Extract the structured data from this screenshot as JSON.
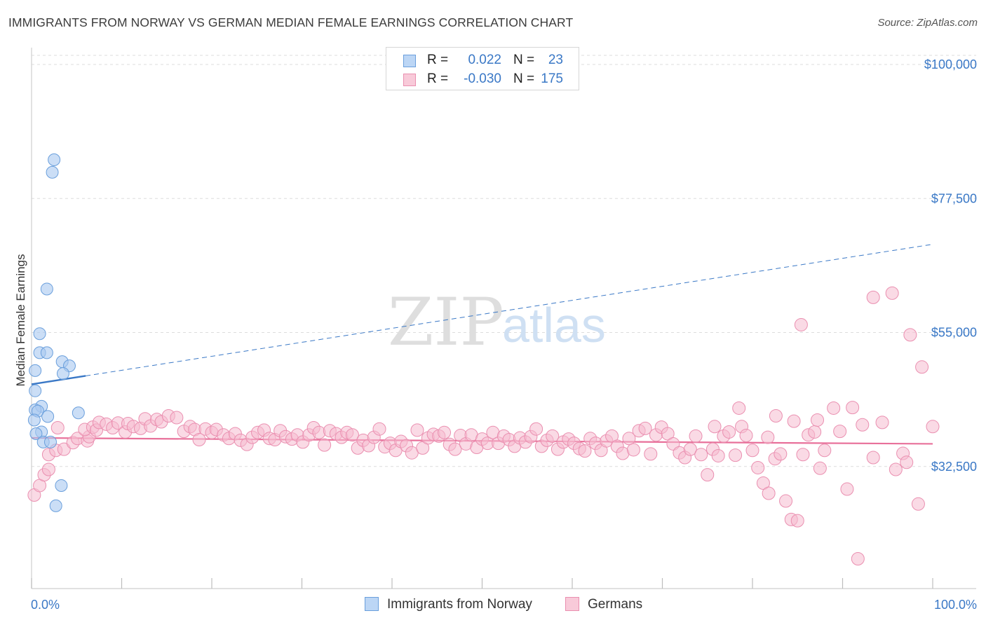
{
  "title": "IMMIGRANTS FROM NORWAY VS GERMAN MEDIAN FEMALE EARNINGS CORRELATION CHART",
  "source": "Source: ZipAtlas.com",
  "watermark": {
    "zip": "ZIP",
    "atlas": "atlas"
  },
  "legend": {
    "rows": [
      {
        "r_label": "R =",
        "r_value": "0.022",
        "n_label": "N =",
        "n_value": "23"
      },
      {
        "r_label": "R =",
        "r_value": "-0.030",
        "n_label": "N =",
        "n_value": "175"
      }
    ]
  },
  "bottom_legend": {
    "items": [
      {
        "label": "Immigrants from Norway"
      },
      {
        "label": "Germans"
      }
    ]
  },
  "colors": {
    "blue_fill": "#a8c8f0",
    "blue_stroke": "#6a9fdc",
    "blue_line": "#3a78c6",
    "pink_fill": "#f6bcd0",
    "pink_stroke": "#ea8fb0",
    "pink_line": "#e8709a",
    "tick_label": "#3a78c6",
    "grid": "#dddddd"
  },
  "chart_data": {
    "type": "scatter",
    "xlabel": "",
    "ylabel": "Median Female Earnings",
    "xlim": [
      0,
      100
    ],
    "ylim": [
      12000,
      102000
    ],
    "x_tick_labels": [
      "0.0%",
      "100.0%"
    ],
    "y_ticks": [
      {
        "value": 32500,
        "label": "$32,500"
      },
      {
        "value": 55000,
        "label": "$55,000"
      },
      {
        "value": 77500,
        "label": "$77,500"
      },
      {
        "value": 100000,
        "label": "$100,000"
      }
    ],
    "grid": true,
    "series": [
      {
        "name": "Immigrants from Norway",
        "color": "blue",
        "points": [
          [
            2.5,
            84000
          ],
          [
            2.3,
            81900
          ],
          [
            1.7,
            62300
          ],
          [
            0.9,
            54800
          ],
          [
            0.9,
            51600
          ],
          [
            1.7,
            51600
          ],
          [
            3.4,
            50100
          ],
          [
            0.4,
            48600
          ],
          [
            4.2,
            49400
          ],
          [
            3.5,
            48100
          ],
          [
            0.4,
            45200
          ],
          [
            1.1,
            42600
          ],
          [
            0.4,
            42000
          ],
          [
            0.7,
            41800
          ],
          [
            1.8,
            40900
          ],
          [
            5.2,
            41500
          ],
          [
            0.3,
            40300
          ],
          [
            1.1,
            38300
          ],
          [
            0.5,
            38000
          ],
          [
            1.3,
            36600
          ],
          [
            2.1,
            36600
          ],
          [
            3.3,
            29300
          ],
          [
            2.7,
            25900
          ]
        ],
        "trend": {
          "x": [
            0,
            100
          ],
          "y": [
            46300,
            69800
          ],
          "solid_until_x": 6
        }
      },
      {
        "name": "Germans",
        "color": "pink",
        "points": [
          [
            0.3,
            27700
          ],
          [
            0.9,
            29300
          ],
          [
            1.4,
            31100
          ],
          [
            1.9,
            32000
          ],
          [
            1.9,
            34500
          ],
          [
            2.7,
            35200
          ],
          [
            3.6,
            35400
          ],
          [
            4.6,
            36500
          ],
          [
            5.1,
            37200
          ],
          [
            6.2,
            36800
          ],
          [
            6.4,
            37500
          ],
          [
            2.9,
            39000
          ],
          [
            5.9,
            38700
          ],
          [
            6.8,
            39100
          ],
          [
            7.2,
            38600
          ],
          [
            7.5,
            39900
          ],
          [
            8.3,
            39600
          ],
          [
            9.0,
            39000
          ],
          [
            9.6,
            39800
          ],
          [
            10.4,
            38300
          ],
          [
            10.7,
            39700
          ],
          [
            11.3,
            39200
          ],
          [
            12.1,
            38900
          ],
          [
            12.6,
            40500
          ],
          [
            13.2,
            39300
          ],
          [
            13.9,
            40400
          ],
          [
            14.4,
            40000
          ],
          [
            15.2,
            41000
          ],
          [
            16.1,
            40700
          ],
          [
            16.9,
            38400
          ],
          [
            17.6,
            39200
          ],
          [
            18.1,
            38700
          ],
          [
            18.6,
            37000
          ],
          [
            19.3,
            38800
          ],
          [
            20.0,
            38200
          ],
          [
            20.5,
            38700
          ],
          [
            21.3,
            37800
          ],
          [
            21.9,
            37200
          ],
          [
            22.6,
            38000
          ],
          [
            23.2,
            36900
          ],
          [
            23.9,
            36200
          ],
          [
            24.5,
            37400
          ],
          [
            25.1,
            38200
          ],
          [
            25.8,
            38600
          ],
          [
            26.4,
            37200
          ],
          [
            27.0,
            37000
          ],
          [
            27.6,
            38500
          ],
          [
            28.2,
            37500
          ],
          [
            28.9,
            37100
          ],
          [
            29.5,
            37800
          ],
          [
            30.1,
            36600
          ],
          [
            30.8,
            37800
          ],
          [
            31.3,
            39000
          ],
          [
            31.9,
            38200
          ],
          [
            32.5,
            36100
          ],
          [
            33.1,
            38500
          ],
          [
            33.8,
            38000
          ],
          [
            34.4,
            37400
          ],
          [
            35.0,
            38200
          ],
          [
            35.6,
            37800
          ],
          [
            36.2,
            35600
          ],
          [
            36.8,
            36900
          ],
          [
            37.4,
            36000
          ],
          [
            38.0,
            37400
          ],
          [
            38.6,
            38800
          ],
          [
            39.2,
            35800
          ],
          [
            39.8,
            36400
          ],
          [
            40.4,
            35200
          ],
          [
            41.0,
            36700
          ],
          [
            41.6,
            36000
          ],
          [
            42.2,
            34800
          ],
          [
            42.8,
            38600
          ],
          [
            43.4,
            35600
          ],
          [
            44.0,
            37300
          ],
          [
            44.6,
            37900
          ],
          [
            45.2,
            37600
          ],
          [
            45.8,
            38200
          ],
          [
            46.4,
            36200
          ],
          [
            47.0,
            35400
          ],
          [
            47.6,
            37700
          ],
          [
            48.2,
            36300
          ],
          [
            48.8,
            37800
          ],
          [
            49.4,
            35700
          ],
          [
            50.0,
            37100
          ],
          [
            50.6,
            36400
          ],
          [
            51.2,
            38200
          ],
          [
            51.8,
            36400
          ],
          [
            52.4,
            37600
          ],
          [
            53.0,
            37000
          ],
          [
            53.6,
            35900
          ],
          [
            54.2,
            37300
          ],
          [
            54.8,
            36600
          ],
          [
            55.4,
            37500
          ],
          [
            56.0,
            38800
          ],
          [
            56.6,
            35900
          ],
          [
            57.2,
            36900
          ],
          [
            57.8,
            37600
          ],
          [
            58.4,
            35400
          ],
          [
            59.0,
            36600
          ],
          [
            59.6,
            37100
          ],
          [
            60.2,
            36400
          ],
          [
            60.8,
            35500
          ],
          [
            61.4,
            35100
          ],
          [
            62.0,
            37200
          ],
          [
            62.6,
            36400
          ],
          [
            63.2,
            35200
          ],
          [
            63.8,
            36800
          ],
          [
            64.4,
            37600
          ],
          [
            65.0,
            35900
          ],
          [
            65.6,
            34700
          ],
          [
            66.3,
            37200
          ],
          [
            66.8,
            35300
          ],
          [
            67.4,
            38500
          ],
          [
            68.1,
            38900
          ],
          [
            68.7,
            34600
          ],
          [
            69.3,
            37800
          ],
          [
            69.9,
            39100
          ],
          [
            70.6,
            38000
          ],
          [
            71.2,
            36300
          ],
          [
            71.9,
            34800
          ],
          [
            72.5,
            34000
          ],
          [
            73.1,
            35400
          ],
          [
            73.7,
            37600
          ],
          [
            74.3,
            34500
          ],
          [
            75.0,
            31100
          ],
          [
            75.6,
            35400
          ],
          [
            76.2,
            34300
          ],
          [
            76.8,
            37600
          ],
          [
            77.4,
            38300
          ],
          [
            78.1,
            34400
          ],
          [
            78.8,
            39200
          ],
          [
            79.3,
            37700
          ],
          [
            80.0,
            35200
          ],
          [
            80.6,
            32300
          ],
          [
            81.2,
            29700
          ],
          [
            81.8,
            28000
          ],
          [
            82.5,
            33800
          ],
          [
            83.1,
            34600
          ],
          [
            83.7,
            26700
          ],
          [
            84.3,
            23600
          ],
          [
            85.0,
            23400
          ],
          [
            85.6,
            34500
          ],
          [
            86.2,
            37800
          ],
          [
            86.9,
            38300
          ],
          [
            87.5,
            32200
          ],
          [
            88.0,
            35200
          ],
          [
            78.5,
            42300
          ],
          [
            75.8,
            39200
          ],
          [
            82.6,
            41000
          ],
          [
            84.6,
            40100
          ],
          [
            87.2,
            40300
          ],
          [
            89.0,
            42300
          ],
          [
            91.1,
            42400
          ],
          [
            92.2,
            39500
          ],
          [
            94.4,
            39900
          ],
          [
            96.7,
            34700
          ],
          [
            97.1,
            33200
          ],
          [
            95.9,
            32000
          ],
          [
            90.5,
            28700
          ],
          [
            91.7,
            17000
          ],
          [
            81.7,
            37400
          ],
          [
            93.4,
            34000
          ],
          [
            97.5,
            54600
          ],
          [
            98.8,
            49200
          ],
          [
            85.4,
            56300
          ],
          [
            93.4,
            60900
          ],
          [
            95.5,
            61600
          ],
          [
            98.4,
            26200
          ],
          [
            89.7,
            38400
          ],
          [
            100.0,
            39200
          ]
        ],
        "trend": {
          "x": [
            0,
            100
          ],
          "y": [
            37300,
            36300
          ]
        }
      }
    ]
  }
}
